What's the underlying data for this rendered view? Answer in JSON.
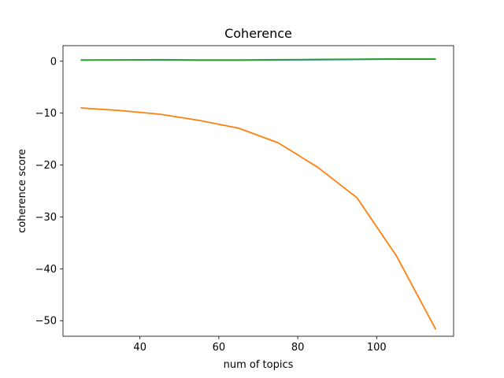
{
  "chart_data": {
    "type": "line",
    "title": "Coherence",
    "xlabel": "num of topics",
    "ylabel": "coherence score",
    "xlim": [
      20.5,
      119.5
    ],
    "ylim": [
      -53.0,
      3.0
    ],
    "xticks": [
      40,
      60,
      80,
      100
    ],
    "yticks": [
      0,
      -10,
      -20,
      -30,
      -40,
      -50
    ],
    "xtick_labels": [
      "40",
      "60",
      "80",
      "100"
    ],
    "ytick_labels": [
      "0",
      "−10",
      "−20",
      "−30",
      "−40",
      "−50"
    ],
    "grid": false,
    "x": [
      25,
      35,
      45,
      55,
      65,
      75,
      85,
      95,
      105,
      115
    ],
    "series": [
      {
        "color": "#ff7f0e",
        "values": [
          -9.0,
          -9.5,
          -10.2,
          -11.4,
          -12.9,
          -15.7,
          -20.4,
          -26.3,
          -37.5,
          -51.7
        ]
      },
      {
        "color": "#1f77b4",
        "values": [
          0.2,
          0.25,
          0.25,
          0.2,
          0.2,
          0.25,
          0.3,
          0.35,
          0.4,
          0.4
        ]
      },
      {
        "color": "#2ca02c",
        "values": [
          0.25,
          0.25,
          0.3,
          0.25,
          0.25,
          0.3,
          0.35,
          0.4,
          0.45,
          0.45
        ]
      }
    ]
  }
}
